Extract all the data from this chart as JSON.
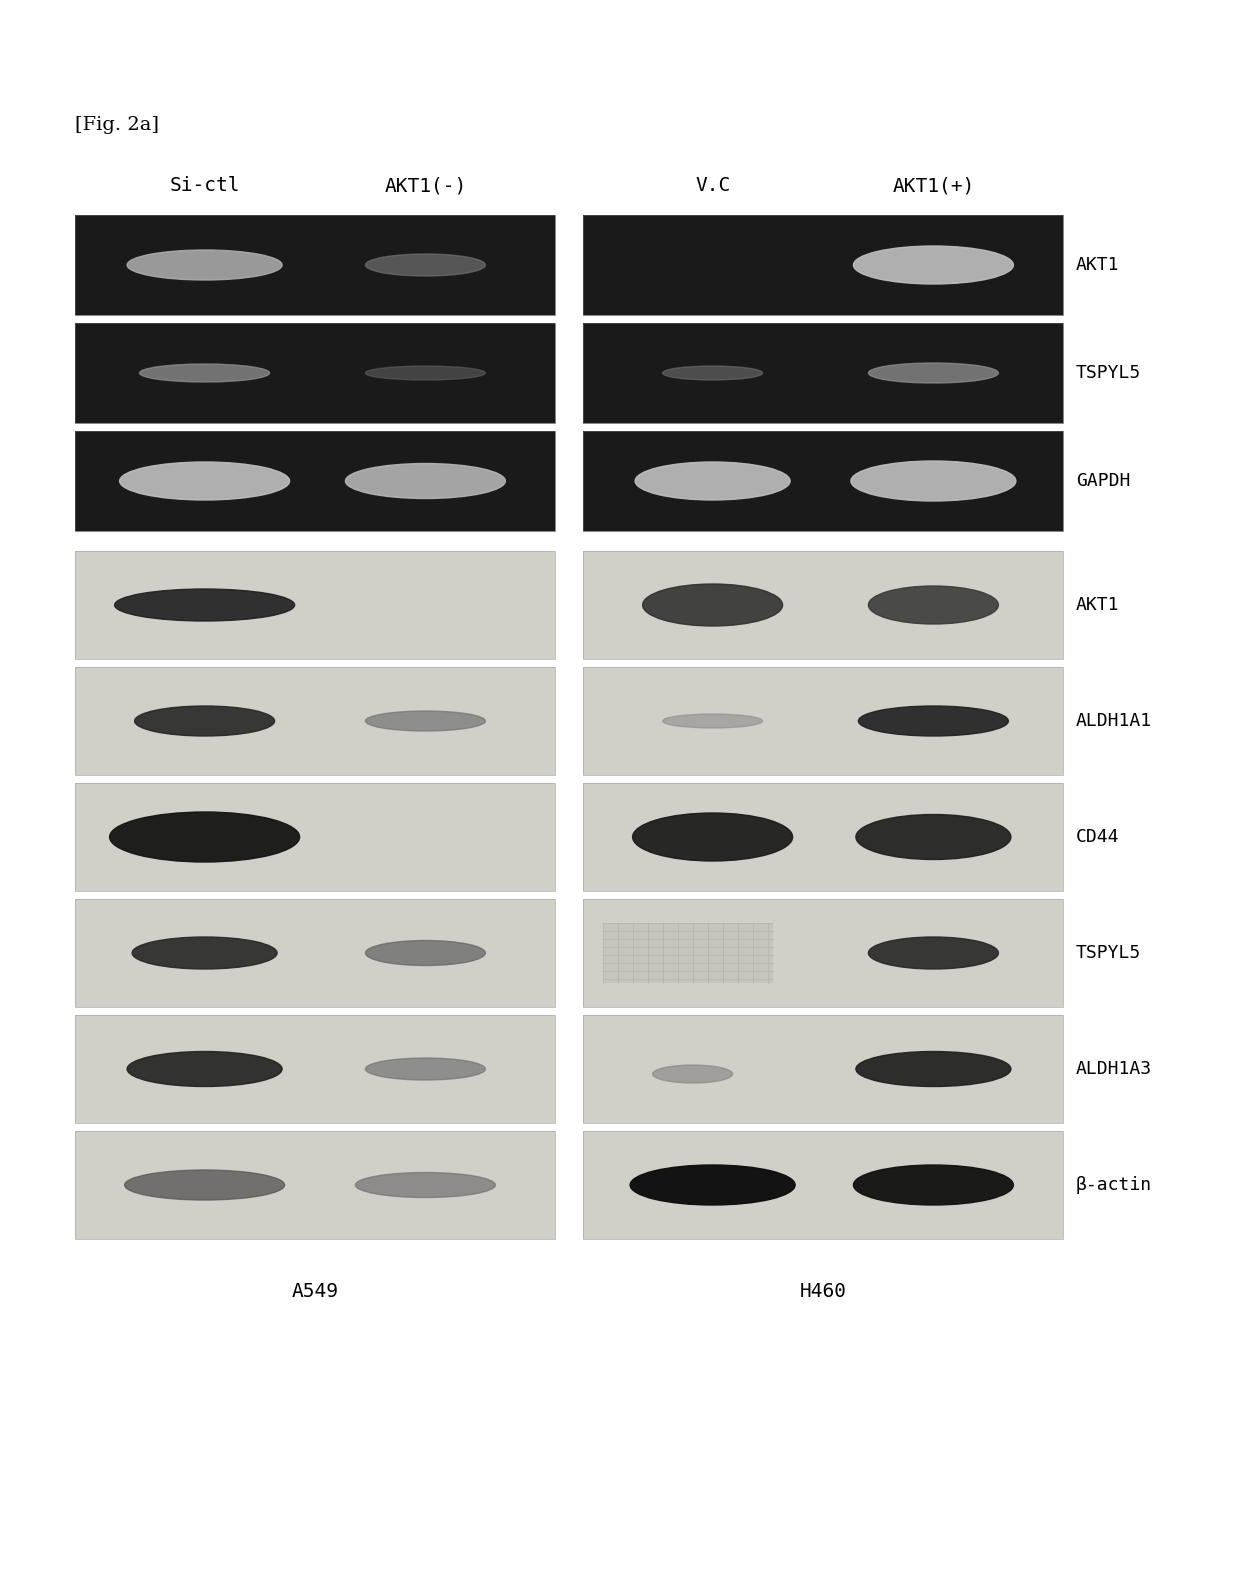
{
  "fig_label": "[Fig. 2a]",
  "background_color": "#ffffff",
  "fig_width": 12.4,
  "fig_height": 15.85,
  "col_headers_left": [
    "Si-ctl",
    "AKT1(-)"
  ],
  "col_headers_right": [
    "V.C",
    "AKT1(+)"
  ],
  "cell_labels_bottom": [
    "A549",
    "H460"
  ],
  "row_labels_pcr": [
    "AKT1",
    "TSPYL5",
    "GAPDH"
  ],
  "row_labels_wb": [
    "AKT1",
    "ALDH1A1",
    "CD44",
    "TSPYL5",
    "ALDH1A3",
    "β-actin"
  ],
  "panel_bg_pcr": "#1a1a1a",
  "panel_bg_wb": "#d0cfc8",
  "text_color": "#000000",
  "label_font_size": 13,
  "header_font_size": 14,
  "fig_label_font_size": 14
}
